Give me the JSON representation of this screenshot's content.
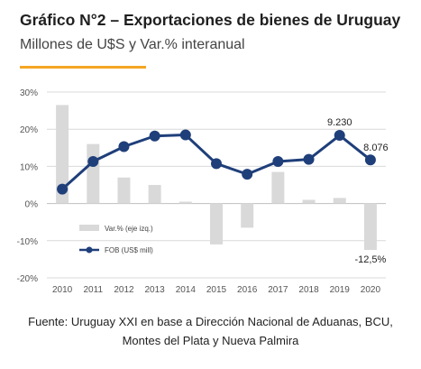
{
  "header": {
    "title": "Gráfico N°2 – Exportaciones de bienes de Uruguay",
    "subtitle": "Millones de U$S y Var.% interanual"
  },
  "colors": {
    "accent": "#F5A623",
    "bar": "#D9D9D9",
    "line": "#1F3F7A",
    "grid": "#D9D9D9",
    "zero_line": "#BFBFBF"
  },
  "chart_data": {
    "type": "bar",
    "categories": [
      "2010",
      "2011",
      "2012",
      "2013",
      "2014",
      "2015",
      "2016",
      "2017",
      "2018",
      "2019",
      "2020"
    ],
    "series": [
      {
        "name": "Var.% (eje izq.)",
        "type": "bar",
        "axis": "left",
        "values": [
          26.5,
          16.0,
          7.0,
          5.0,
          0.5,
          -11.0,
          -6.5,
          8.5,
          1.0,
          1.5,
          -12.5
        ]
      },
      {
        "name": "FOB (US$ mill)",
        "type": "line",
        "axis": "right",
        "values": [
          6700,
          8000,
          8700,
          9200,
          9250,
          7900,
          7400,
          8000,
          8100,
          9230,
          8076
        ]
      }
    ],
    "yticks": [
      "30%",
      "20%",
      "10%",
      "0%",
      "-10%",
      "-20%"
    ],
    "ylim": [
      -20,
      30
    ],
    "y2lim": [
      2520,
      11270
    ],
    "grid": true,
    "legend_position": "lower-left",
    "data_labels": [
      {
        "series": "FOB (US$ mill)",
        "category": "2019",
        "text": "9.230"
      },
      {
        "series": "FOB (US$ mill)",
        "category": "2020",
        "text": "8.076"
      },
      {
        "series": "Var.% (eje izq.)",
        "category": "2020",
        "text": "-12,5%"
      }
    ]
  },
  "source": {
    "line1": "Fuente: Uruguay XXI en base a Dirección Nacional de Aduanas, BCU,",
    "line2": "Montes del Plata y Nueva Palmira"
  }
}
